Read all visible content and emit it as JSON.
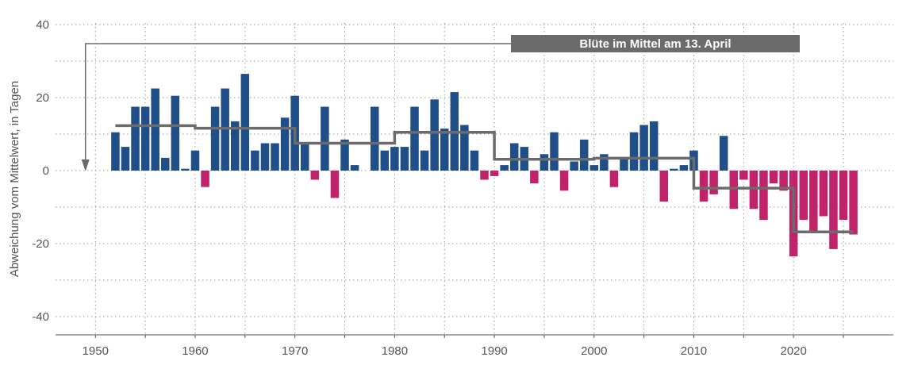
{
  "chart_data": {
    "type": "bar",
    "title": "",
    "xlabel": "",
    "ylabel": "Abweichung vom Mittelwert, in Tagen",
    "xlim": [
      1946,
      2030
    ],
    "ylim": [
      -45,
      40
    ],
    "xticks": [
      1950,
      1960,
      1970,
      1980,
      1990,
      2000,
      2010,
      2020
    ],
    "yticks": [
      -40,
      -20,
      0,
      20,
      40
    ],
    "grid": true,
    "colors": {
      "positive": "#1f4e89",
      "negative": "#c0236a",
      "mean_line": "#6b6b6b",
      "grid": "#999999",
      "axis": "#555555"
    },
    "x": [
      1952,
      1953,
      1954,
      1955,
      1956,
      1957,
      1958,
      1959,
      1960,
      1961,
      1962,
      1963,
      1964,
      1965,
      1966,
      1967,
      1968,
      1969,
      1970,
      1971,
      1972,
      1973,
      1974,
      1975,
      1976,
      1977,
      1978,
      1979,
      1980,
      1981,
      1982,
      1983,
      1984,
      1985,
      1986,
      1987,
      1988,
      1989,
      1990,
      1991,
      1992,
      1993,
      1994,
      1995,
      1996,
      1997,
      1998,
      1999,
      2000,
      2001,
      2002,
      2003,
      2004,
      2005,
      2006,
      2007,
      2008,
      2009,
      2010,
      2011,
      2012,
      2013,
      2014,
      2015,
      2016,
      2017,
      2018,
      2019,
      2020,
      2021,
      2022,
      2023,
      2024,
      2025,
      2026
    ],
    "values": [
      10.5,
      6.5,
      17.5,
      17.5,
      22.5,
      3.5,
      20.5,
      0.5,
      5.5,
      -4.5,
      17.5,
      22.5,
      13.5,
      26.5,
      5.5,
      7.5,
      7.5,
      14.5,
      20.5,
      7.5,
      -2.5,
      17.5,
      -7.5,
      8.5,
      1.5,
      0,
      17.5,
      5.5,
      6.5,
      6.5,
      17.5,
      5.5,
      19.5,
      11.5,
      21.5,
      12.5,
      5.5,
      -2.5,
      -1.5,
      1.5,
      7.5,
      6.5,
      -3.5,
      4.5,
      10.5,
      -5.5,
      2.5,
      8.5,
      1.5,
      4.5,
      -4.5,
      3.5,
      10.5,
      12.5,
      13.5,
      -8.5,
      0.5,
      1.5,
      5.5,
      -8.5,
      -6.5,
      9.5,
      -10.5,
      -2.5,
      -10.5,
      -13.5,
      -3.5,
      -5.5,
      -23.5,
      -13.5,
      -16.5,
      -12.5,
      -21.5,
      -13.5,
      -17.5
    ],
    "decade_means": [
      {
        "from": 1952,
        "to": 1960,
        "value": 12.3
      },
      {
        "from": 1960,
        "to": 1970,
        "value": 11.6
      },
      {
        "from": 1970,
        "to": 1980,
        "value": 7.5
      },
      {
        "from": 1980,
        "to": 1990,
        "value": 10.5
      },
      {
        "from": 1990,
        "to": 2000,
        "value": 3.1
      },
      {
        "from": 2000,
        "to": 2010,
        "value": 3.4
      },
      {
        "from": 2010,
        "to": 2020,
        "value": -4.8
      },
      {
        "from": 2020,
        "to": 2026,
        "value": -16.8
      }
    ],
    "annotation": {
      "text": "Blüte im Mittel am 13. April",
      "arrow_target": {
        "x": 1949,
        "y": 0
      }
    }
  }
}
